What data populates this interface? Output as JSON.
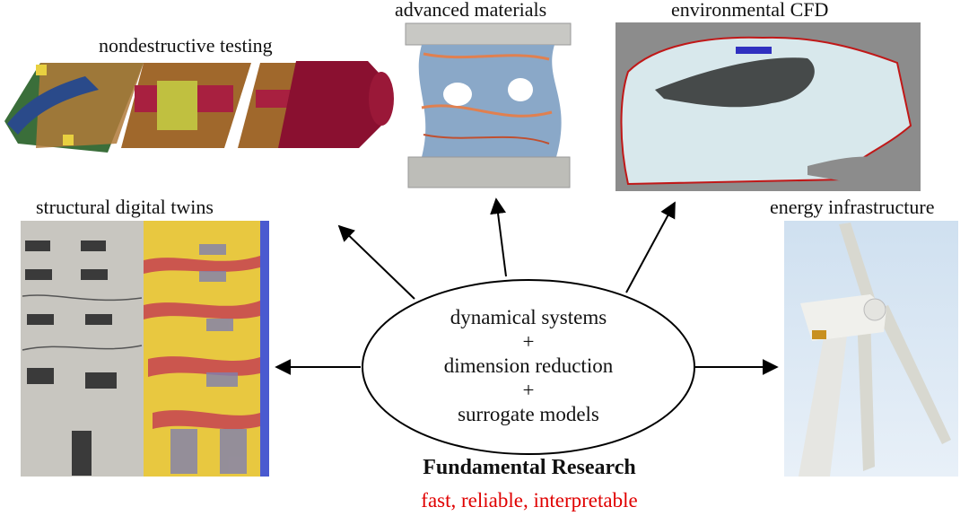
{
  "labels": {
    "nondestructive": "nondestructive testing",
    "advanced": "advanced materials",
    "cfd": "environmental CFD",
    "structural": "structural digital twins",
    "energy": "energy infrastructure"
  },
  "center": {
    "line1": "dynamical systems",
    "plus1": "+",
    "line2": "dimension reduction",
    "plus2": "+",
    "line3": "surrogate models"
  },
  "footer": {
    "title": "Fundamental Research",
    "subtitle": "fast, reliable, interpretable"
  },
  "colors": {
    "subtitle": "#e00000",
    "arrow": "#000000"
  }
}
